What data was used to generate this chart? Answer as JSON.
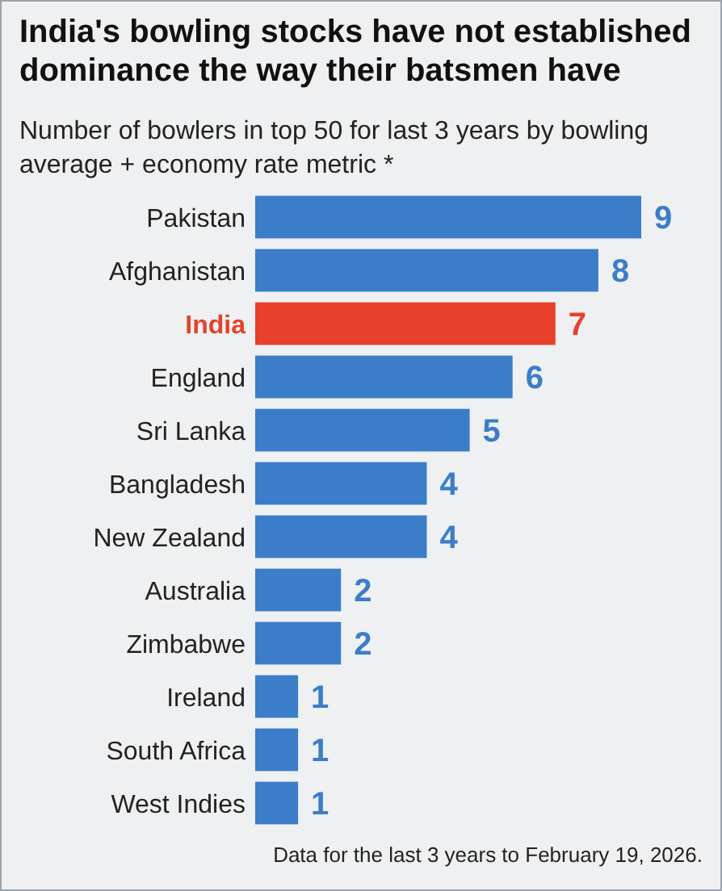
{
  "chart_data": {
    "type": "bar",
    "orientation": "horizontal",
    "title": "India's bowling stocks have not established dominance the way their batsmen have",
    "subtitle": "Number of bowlers in top 50 for last 3 years by bowling average + economy rate metric *",
    "categories": [
      "Pakistan",
      "Afghanistan",
      "India",
      "England",
      "Sri Lanka",
      "Bangladesh",
      "New Zealand",
      "Australia",
      "Zimbabwe",
      "Ireland",
      "South Africa",
      "West Indies"
    ],
    "values": [
      9,
      8,
      7,
      6,
      5,
      4,
      4,
      2,
      2,
      1,
      1,
      1
    ],
    "colors": [
      "#3b7dc8",
      "#3b7dc8",
      "#e8402a",
      "#3b7dc8",
      "#3b7dc8",
      "#3b7dc8",
      "#3b7dc8",
      "#3b7dc8",
      "#3b7dc8",
      "#3b7dc8",
      "#3b7dc8",
      "#3b7dc8"
    ],
    "data_labels": true,
    "annotations": [
      "Data for the last 3 years to February 19, 2026."
    ]
  }
}
